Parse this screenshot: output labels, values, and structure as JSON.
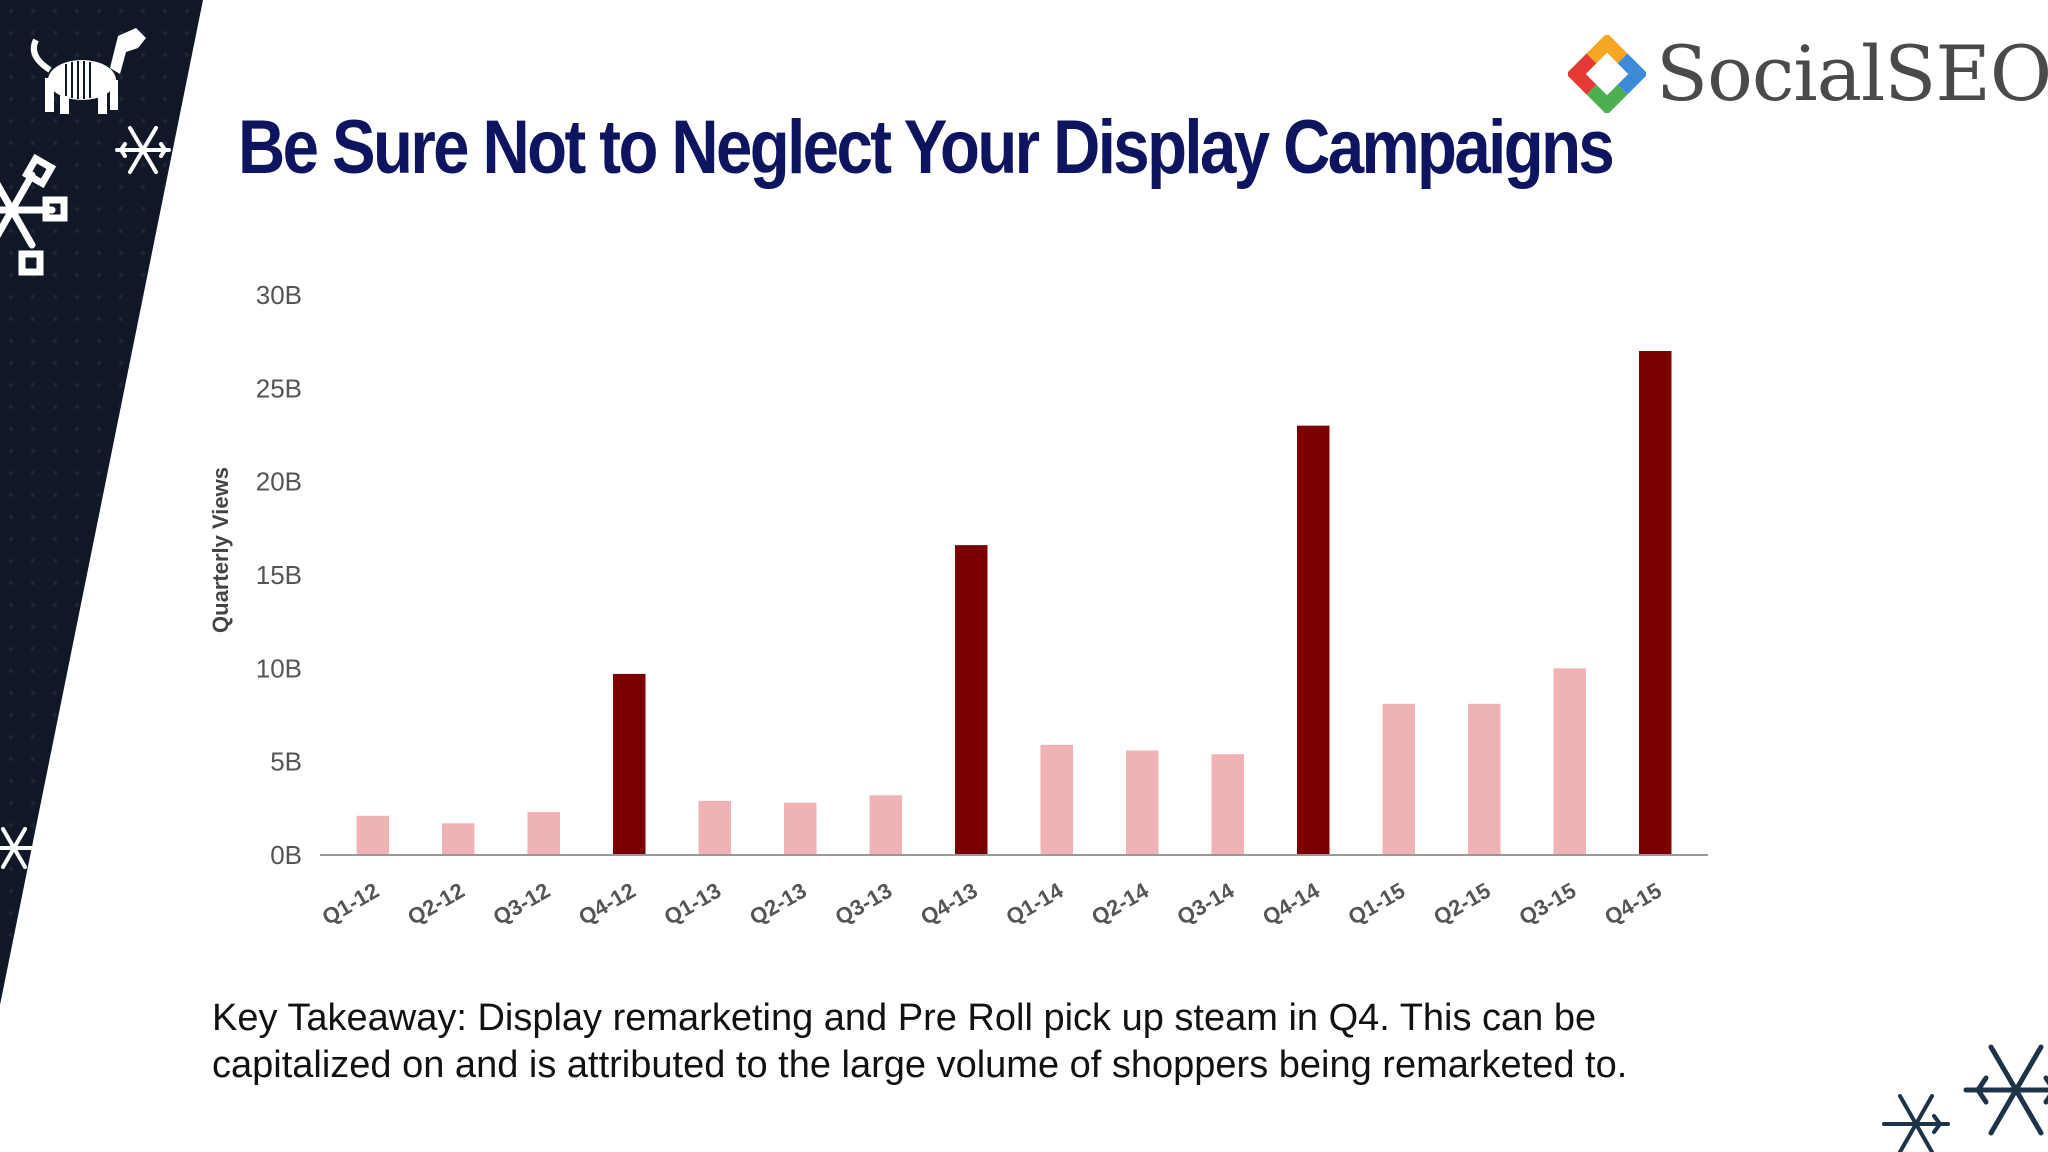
{
  "slide": {
    "title": "Be Sure Not to Neglect Your Display Campaigns",
    "logo_text": "SocialSEO",
    "takeaway": "Key Takeaway: Display remarketing and Pre Roll pick up steam in Q4. This can be capitalized on and is attributed to the large volume of shoppers being remarketed to."
  },
  "theme": {
    "title_color": "#0f1461",
    "band_color": "#101827",
    "q4_color": "#7b0000",
    "other_color": "#efb3b6"
  },
  "chart_data": {
    "type": "bar",
    "ylabel": "Quarterly Views",
    "xlabel": "",
    "ylim": [
      0,
      30
    ],
    "yticks": [
      "0B",
      "5B",
      "10B",
      "15B",
      "20B",
      "25B",
      "30B"
    ],
    "categories": [
      "Q1-12",
      "Q2-12",
      "Q3-12",
      "Q4-12",
      "Q1-13",
      "Q2-13",
      "Q3-13",
      "Q4-13",
      "Q1-14",
      "Q2-14",
      "Q3-14",
      "Q4-14",
      "Q1-15",
      "Q2-15",
      "Q3-15",
      "Q4-15"
    ],
    "values": [
      2.1,
      1.7,
      2.3,
      9.7,
      2.9,
      2.8,
      3.2,
      16.6,
      5.9,
      5.6,
      5.4,
      23.0,
      8.1,
      8.1,
      10.0,
      27.0
    ],
    "grid": false,
    "unit": "B"
  }
}
